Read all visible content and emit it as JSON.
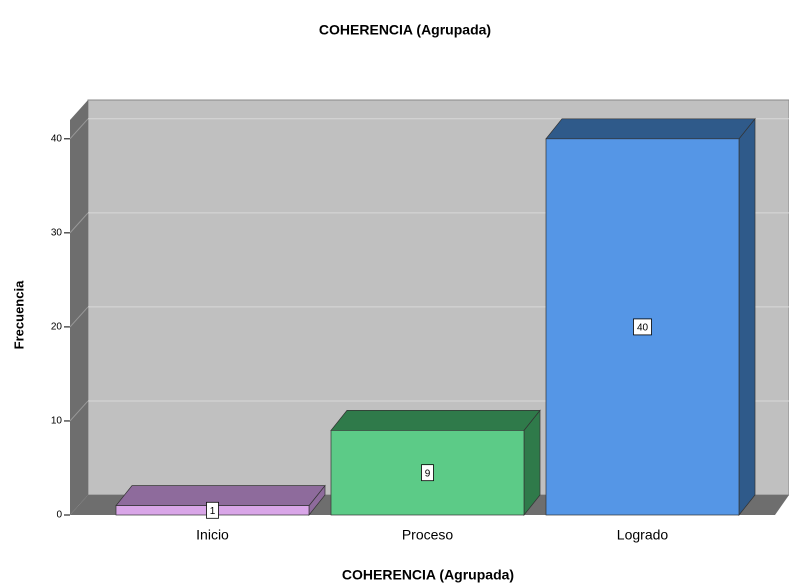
{
  "chart_data": {
    "type": "bar3d",
    "title": "COHERENCIA (Agrupada)",
    "x_label": "COHERENCIA (Agrupada)",
    "y_label": "Frecuencia",
    "categories": [
      "Inicio",
      "Proceso",
      "Logrado"
    ],
    "values": [
      1,
      9,
      40
    ],
    "colors": [
      "#d9a6e8",
      "#5ccb87",
      "#5596e6"
    ],
    "top_colors": [
      "#8e6b9c",
      "#2f7a4a",
      "#2f5a8a"
    ],
    "ylim": [
      0,
      42
    ],
    "yticks": [
      0,
      10,
      20,
      30,
      40
    ],
    "grid": true
  }
}
